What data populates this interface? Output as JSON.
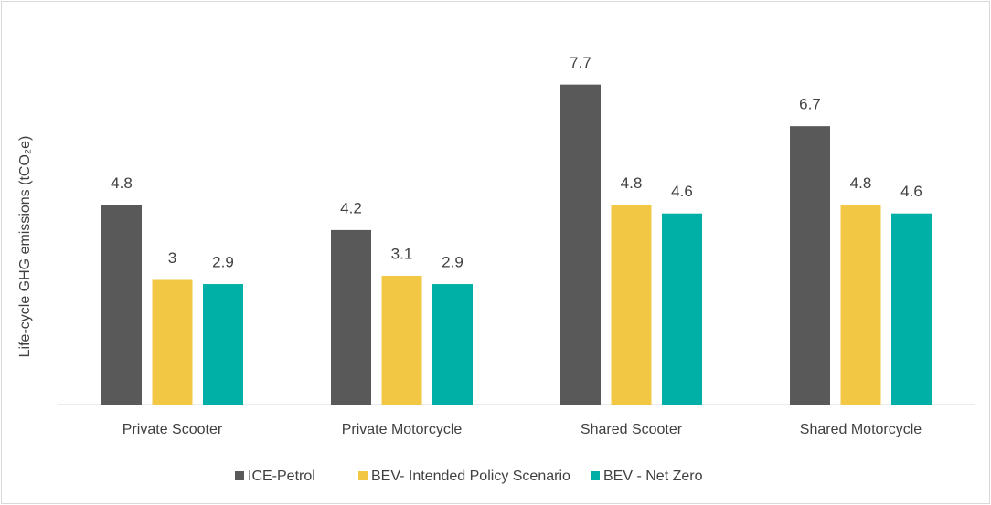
{
  "chart_data": {
    "type": "bar",
    "y_label": "Life-cycle GHG emissions (tCO₂e)",
    "categories": [
      "Private Scooter",
      "Private Motorcycle",
      "Shared Scooter",
      "Shared Motorcycle"
    ],
    "series": [
      {
        "name": "ICE-Petrol",
        "color": "#595959",
        "values": [
          4.8,
          4.2,
          7.7,
          6.7
        ]
      },
      {
        "name": "BEV- Intended Policy Scenario",
        "color": "#f2c744",
        "values": [
          3,
          3.1,
          4.8,
          4.8
        ]
      },
      {
        "name": "BEV - Net Zero",
        "color": "#00b0a6",
        "values": [
          2.9,
          2.9,
          4.6,
          4.6
        ]
      }
    ],
    "ylim": [
      0,
      8
    ],
    "legend": "bottom"
  }
}
